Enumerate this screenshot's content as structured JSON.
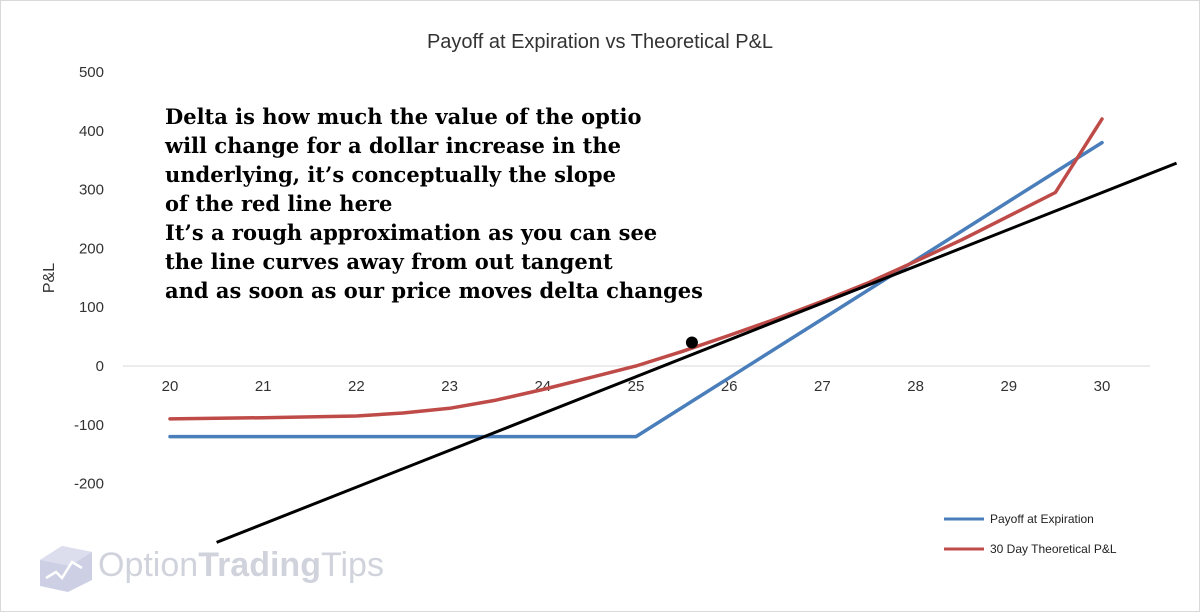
{
  "chart_data": {
    "type": "line",
    "title": "Payoff at Expiration vs Theoretical P&L",
    "xlabel": "",
    "ylabel": "P&L",
    "x": [
      20,
      21,
      22,
      23,
      24,
      25,
      26,
      27,
      28,
      29,
      30
    ],
    "xticks": [
      "20",
      "21",
      "22",
      "23",
      "24",
      "25",
      "26",
      "27",
      "28",
      "29",
      "30"
    ],
    "xlim": [
      20,
      30
    ],
    "yticks": [
      "500",
      "400",
      "300",
      "200",
      "100",
      "0",
      "-100",
      "-200"
    ],
    "ylim": [
      -200,
      500
    ],
    "grid": false,
    "legend_position": "bottom-right",
    "series": [
      {
        "name": "Payoff at Expiration",
        "color": "#4a7ebb",
        "points": [
          [
            20,
            -120
          ],
          [
            21,
            -120
          ],
          [
            22,
            -120
          ],
          [
            23,
            -120
          ],
          [
            24,
            -120
          ],
          [
            25,
            -120
          ],
          [
            26,
            -20
          ],
          [
            27,
            80
          ],
          [
            28,
            180
          ],
          [
            29,
            280
          ],
          [
            30,
            380
          ]
        ]
      },
      {
        "name": "30 Day Theoretical P&L",
        "color": "#be4b48",
        "points": [
          [
            20,
            -90
          ],
          [
            21,
            -88
          ],
          [
            22,
            -85
          ],
          [
            22.5,
            -80
          ],
          [
            23,
            -72
          ],
          [
            23.5,
            -58
          ],
          [
            24,
            -40
          ],
          [
            24.5,
            -20
          ],
          [
            25,
            0
          ],
          [
            25.5,
            25
          ],
          [
            26,
            52
          ],
          [
            26.5,
            80
          ],
          [
            27,
            110
          ],
          [
            27.5,
            142
          ],
          [
            28,
            178
          ],
          [
            28.5,
            215
          ],
          [
            29,
            255
          ],
          [
            29.5,
            295
          ],
          [
            30,
            338
          ],
          [
            30,
            420
          ]
        ]
      }
    ],
    "tangent_line": {
      "color": "#000000",
      "points": [
        [
          20.5,
          -300
        ],
        [
          30.8,
          345
        ]
      ]
    },
    "tangent_point": [
      25.6,
      40
    ],
    "annotation": [
      "Delta is how much the value of the optio",
      "will change for a dollar increase in the",
      "underlying, it’s conceptually the slope",
      "of the red line here",
      "It’s a rough approximation as you can see",
      "the line curves away from out tangent",
      "and as soon as our price moves delta changes"
    ]
  },
  "logo": {
    "text_light": "Option",
    "text_bold": "Trading",
    "text_end": "Tips"
  }
}
